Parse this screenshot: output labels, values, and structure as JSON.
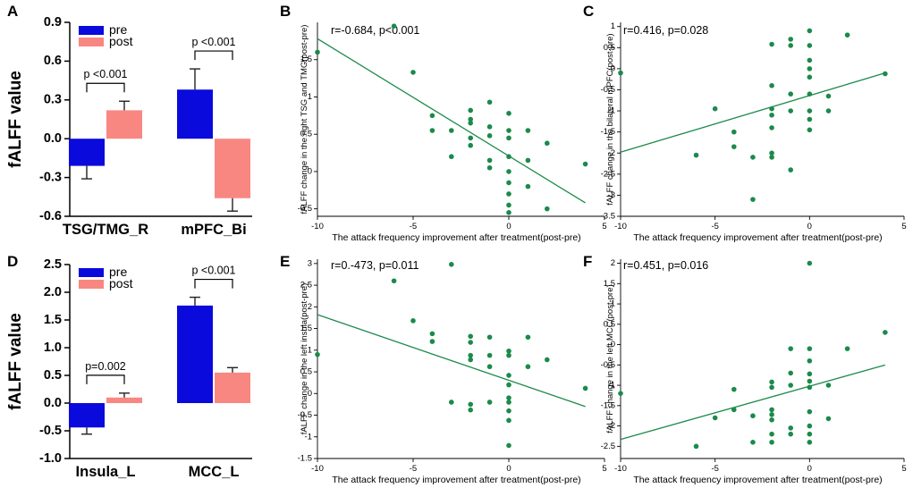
{
  "colors": {
    "pre": "#0a0adc",
    "post": "#f88782",
    "scatter": "#1b8a4a",
    "axis": "#000000",
    "bracket": "#000000"
  },
  "chart_data": [
    {
      "panel": "A",
      "type": "bar",
      "ylabel": "fALFF value",
      "ylim": [
        -0.6,
        0.9
      ],
      "yticks": [
        "0.9",
        "0.6",
        "0.3",
        "0.0",
        "-0.3",
        "-0.6"
      ],
      "categories": [
        "TSG/TMG_R",
        "mPFC_Bi"
      ],
      "legend": [
        "pre",
        "post"
      ],
      "legend_position": "top-left",
      "series": [
        {
          "name": "pre",
          "values": [
            -0.21,
            0.38
          ],
          "errors": [
            0.1,
            0.16
          ]
        },
        {
          "name": "post",
          "values": [
            0.22,
            -0.46
          ],
          "errors": [
            0.07,
            0.1
          ]
        }
      ],
      "annotations": [
        "p <0.001",
        "p <0.001"
      ]
    },
    {
      "panel": "B",
      "type": "scatter",
      "stat": "r=-0.684, p<0.001",
      "xlabel": "The attack frequency improvement after treatment(post-pre)",
      "ylabel": "fALFF change in the right TSG and TMG(post-pre)",
      "xlim": [
        -10,
        5
      ],
      "ylim": [
        -0.6,
        2.0
      ],
      "xticks": [
        "-10",
        "-5",
        "0",
        "5"
      ],
      "yticks": [
        "1.5",
        "1",
        "0.5",
        "0",
        "-0.5"
      ],
      "points": [
        [
          -10,
          1.6
        ],
        [
          -6,
          1.95
        ],
        [
          -5,
          1.33
        ],
        [
          -4,
          0.75
        ],
        [
          -4,
          0.55
        ],
        [
          -3,
          0.55
        ],
        [
          -3,
          0.2
        ],
        [
          -2,
          0.82
        ],
        [
          -2,
          0.7
        ],
        [
          -2,
          0.65
        ],
        [
          -2,
          0.45
        ],
        [
          -2,
          0.35
        ],
        [
          -1,
          0.93
        ],
        [
          -1,
          0.6
        ],
        [
          -1,
          0.48
        ],
        [
          -1,
          0.15
        ],
        [
          -1,
          0.05
        ],
        [
          0,
          0.78
        ],
        [
          0,
          0.55
        ],
        [
          0,
          0.45
        ],
        [
          0,
          0.2
        ],
        [
          0,
          0.0
        ],
        [
          0,
          -0.15
        ],
        [
          0,
          -0.3
        ],
        [
          0,
          -0.45
        ],
        [
          0,
          -0.55
        ],
        [
          1,
          0.55
        ],
        [
          1,
          0.15
        ],
        [
          1,
          -0.2
        ],
        [
          2,
          0.38
        ],
        [
          2,
          -0.5
        ],
        [
          4,
          0.1
        ]
      ],
      "fit": [
        [
          -10,
          1.78
        ],
        [
          4,
          -0.42
        ]
      ]
    },
    {
      "panel": "C",
      "type": "scatter",
      "stat": "r=0.416, p=0.028",
      "xlabel": "The attack frequency improvement after treatment(post-pre)",
      "ylabel": "fALFF change in the bilateral mPFC(post-pre)",
      "xlim": [
        -10,
        5
      ],
      "ylim": [
        -3.5,
        1.1
      ],
      "xticks": [
        "-10",
        "-5",
        "0",
        "5"
      ],
      "yticks": [
        "1",
        "0.5",
        "0",
        "-0.5",
        "-1",
        "-1.5",
        "-2",
        "-2.5",
        "-3",
        "-3.5"
      ],
      "points": [
        [
          -10,
          -0.1
        ],
        [
          -6,
          -2.05
        ],
        [
          -5,
          -0.95
        ],
        [
          -4,
          -1.5
        ],
        [
          -4,
          -1.85
        ],
        [
          -3,
          -2.1
        ],
        [
          -3,
          -3.1
        ],
        [
          -2,
          0.58
        ],
        [
          -2,
          -0.4
        ],
        [
          -2,
          -0.95
        ],
        [
          -2,
          -1.1
        ],
        [
          -2,
          -1.4
        ],
        [
          -2,
          -2.0
        ],
        [
          -2,
          -2.1
        ],
        [
          -1,
          0.7
        ],
        [
          -1,
          0.55
        ],
        [
          -1,
          -0.6
        ],
        [
          -1,
          -1.0
        ],
        [
          -1,
          -2.4
        ],
        [
          0,
          0.9
        ],
        [
          0,
          0.55
        ],
        [
          0,
          0.2
        ],
        [
          0,
          0.0
        ],
        [
          0,
          -0.2
        ],
        [
          0,
          -0.6
        ],
        [
          0,
          -1.0
        ],
        [
          0,
          -1.45
        ],
        [
          0,
          -1.2
        ],
        [
          1,
          -0.65
        ],
        [
          1,
          -1.0
        ],
        [
          2,
          0.8
        ],
        [
          4,
          -0.12
        ]
      ],
      "fit": [
        [
          -10,
          -1.98
        ],
        [
          4,
          -0.1
        ]
      ]
    },
    {
      "panel": "D",
      "type": "bar",
      "ylabel": "fALFF value",
      "ylim": [
        -1.0,
        2.5
      ],
      "yticks": [
        "2.5",
        "2.0",
        "1.5",
        "1.0",
        "0.5",
        "0.0",
        "-0.5",
        "-1.0"
      ],
      "categories": [
        "Insula_L",
        "MCC_L"
      ],
      "legend": [
        "pre",
        "post"
      ],
      "legend_position": "top-left",
      "series": [
        {
          "name": "pre",
          "values": [
            -0.44,
            1.76
          ],
          "errors": [
            0.12,
            0.15
          ]
        },
        {
          "name": "post",
          "values": [
            0.1,
            0.55
          ],
          "errors": [
            0.08,
            0.09
          ]
        }
      ],
      "annotations": [
        "p=0.002",
        "p <0.001"
      ]
    },
    {
      "panel": "E",
      "type": "scatter",
      "stat": "r=0.-473, p=0.011",
      "xlabel": "The attack frequency improvement after treatment(post-pre)",
      "ylabel": "fALFF change in the left insula(post-pre)",
      "xlim": [
        -10,
        5
      ],
      "ylim": [
        -1.5,
        3.1
      ],
      "xticks": [
        "-10",
        "-5",
        "0",
        "5"
      ],
      "yticks": [
        "3",
        "2.5",
        "2",
        "1.5",
        "1",
        "0.5",
        "0",
        "-0.5",
        "-1",
        "-1.5"
      ],
      "points": [
        [
          -10,
          0.9
        ],
        [
          -6,
          2.6
        ],
        [
          -5,
          1.68
        ],
        [
          -4,
          1.38
        ],
        [
          -4,
          1.2
        ],
        [
          -3,
          2.98
        ],
        [
          -3,
          -0.2
        ],
        [
          -2,
          1.32
        ],
        [
          -2,
          1.18
        ],
        [
          -2,
          0.88
        ],
        [
          -2,
          0.78
        ],
        [
          -2,
          -0.25
        ],
        [
          -2,
          -0.38
        ],
        [
          -1,
          1.3
        ],
        [
          -1,
          0.88
        ],
        [
          -1,
          0.62
        ],
        [
          -1,
          -0.2
        ],
        [
          0,
          0.98
        ],
        [
          0,
          0.88
        ],
        [
          0,
          0.42
        ],
        [
          0,
          0.2
        ],
        [
          0,
          -0.1
        ],
        [
          0,
          -0.2
        ],
        [
          0,
          -0.4
        ],
        [
          0,
          -0.62
        ],
        [
          0,
          -1.2
        ],
        [
          1,
          1.3
        ],
        [
          1,
          0.62
        ],
        [
          2,
          0.78
        ],
        [
          4,
          0.12
        ]
      ],
      "fit": [
        [
          -10,
          1.82
        ],
        [
          4,
          -0.3
        ]
      ]
    },
    {
      "panel": "F",
      "type": "scatter",
      "stat": "r=0.451, p=0.016",
      "xlabel": "The attack frequency improvement after treatment(post-pre)",
      "ylabel": "fALFF change in the left MCC(post-pre)",
      "xlim": [
        -10,
        5
      ],
      "ylim": [
        -2.8,
        2.1
      ],
      "xticks": [
        "-10",
        "-5",
        "0",
        "5"
      ],
      "yticks": [
        "2",
        "1.5",
        "1",
        "0.5",
        "0",
        "-0.5",
        "-1",
        "-1.5",
        "-2",
        "-2.5"
      ],
      "points": [
        [
          -10,
          -1.2
        ],
        [
          -6,
          -2.5
        ],
        [
          -5,
          -1.8
        ],
        [
          -4,
          -1.1
        ],
        [
          -4,
          -1.6
        ],
        [
          -3,
          -1.75
        ],
        [
          -3,
          -2.4
        ],
        [
          -2,
          -0.92
        ],
        [
          -2,
          -1.05
        ],
        [
          -2,
          -1.6
        ],
        [
          -2,
          -1.72
        ],
        [
          -2,
          -1.85
        ],
        [
          -2,
          -2.2
        ],
        [
          -2,
          -2.4
        ],
        [
          -1,
          -0.1
        ],
        [
          -1,
          -0.7
        ],
        [
          -1,
          -1.0
        ],
        [
          -1,
          -2.05
        ],
        [
          -1,
          -2.2
        ],
        [
          0,
          2.0
        ],
        [
          0,
          -0.1
        ],
        [
          0,
          -0.4
        ],
        [
          0,
          -0.72
        ],
        [
          0,
          -0.9
        ],
        [
          0,
          -1.05
        ],
        [
          0,
          -1.65
        ],
        [
          0,
          -2.0
        ],
        [
          0,
          -2.2
        ],
        [
          0,
          -2.4
        ],
        [
          1,
          -1.0
        ],
        [
          1,
          -1.82
        ],
        [
          2,
          -0.1
        ],
        [
          4,
          0.3
        ]
      ],
      "fit": [
        [
          -10,
          -2.33
        ],
        [
          4,
          -0.5
        ]
      ]
    }
  ]
}
